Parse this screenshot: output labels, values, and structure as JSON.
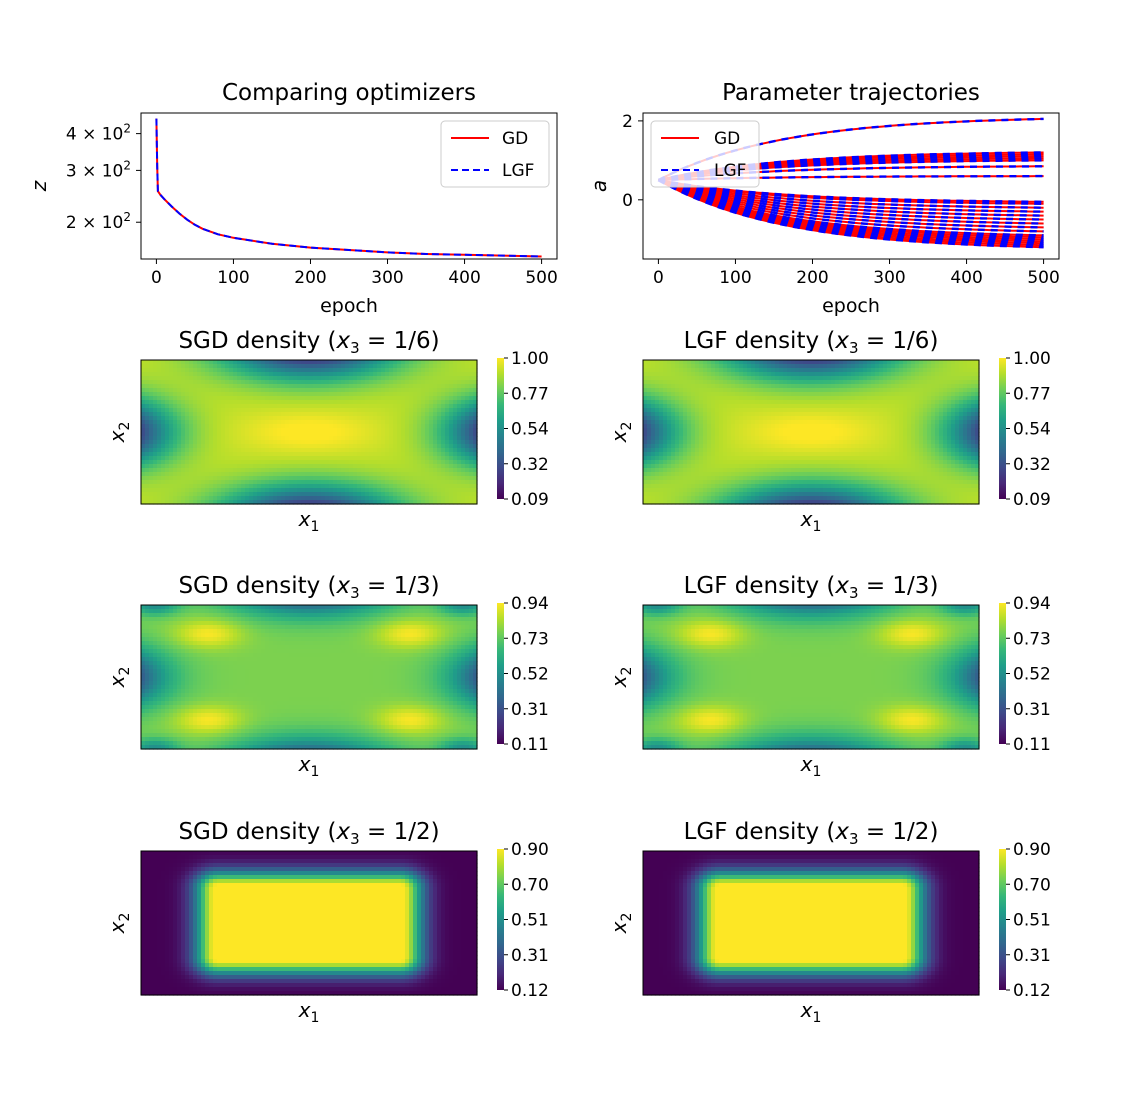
{
  "colors": {
    "gd": "#ff0000",
    "lgf": "#0000ff",
    "viridis": [
      "#440154",
      "#482878",
      "#3e4989",
      "#31688e",
      "#26828e",
      "#1f9e89",
      "#35b779",
      "#6ece58",
      "#b5de2b",
      "#fde725"
    ]
  },
  "chart_data": [
    {
      "type": "line",
      "title": "Comparing optimizers",
      "xlabel": "epoch",
      "ylabel": "z",
      "yscale": "log",
      "xlim": [
        -20,
        520
      ],
      "ylim": [
        150,
        470
      ],
      "xticks": [
        0,
        100,
        200,
        300,
        400,
        500
      ],
      "yticks": [
        {
          "value": 200,
          "mantissa": "2",
          "exponent": "2"
        },
        {
          "value": 300,
          "mantissa": "3",
          "exponent": "2"
        },
        {
          "value": 400,
          "mantissa": "4",
          "exponent": "2"
        }
      ],
      "legend": {
        "position": "top-right",
        "entries": [
          "GD",
          "LGF"
        ]
      },
      "series": [
        {
          "name": "GD",
          "style": "solid",
          "x": [
            0,
            1,
            2,
            5,
            10,
            20,
            30,
            40,
            50,
            60,
            80,
            100,
            150,
            200,
            250,
            300,
            350,
            400,
            450,
            500
          ],
          "y": [
            450,
            310,
            255,
            248,
            240,
            226,
            214,
            204,
            196,
            190,
            182,
            177,
            169,
            164,
            161,
            158,
            156,
            155,
            154,
            153
          ]
        },
        {
          "name": "LGF",
          "style": "dashed",
          "x": [
            0,
            1,
            2,
            5,
            10,
            20,
            30,
            40,
            50,
            60,
            80,
            100,
            150,
            200,
            250,
            300,
            350,
            400,
            450,
            500
          ],
          "y": [
            450,
            310,
            255,
            248,
            240,
            226,
            214,
            204,
            196,
            190,
            182,
            177,
            169,
            164,
            161,
            158,
            156,
            155,
            154,
            153
          ]
        }
      ]
    },
    {
      "type": "line",
      "title": "Parameter trajectories",
      "xlabel": "epoch",
      "ylabel": "a",
      "xlim": [
        -20,
        520
      ],
      "ylim": [
        -1.5,
        2.2
      ],
      "xticks": [
        0,
        100,
        200,
        300,
        400,
        500
      ],
      "yticks": [
        0,
        2
      ],
      "legend": {
        "position": "top-left",
        "entries": [
          "GD",
          "LGF"
        ]
      },
      "start_value": 0.5,
      "final_values": [
        2.05,
        1.2,
        1.15,
        1.1,
        1.05,
        1.0,
        0.85,
        0.6,
        -0.05,
        -0.1,
        -0.2,
        -0.3,
        -0.4,
        -0.5,
        -0.6,
        -0.7,
        -0.8,
        -0.9,
        -0.95,
        -1.0,
        -1.05,
        -1.1,
        -1.15,
        -1.2
      ]
    },
    {
      "type": "heatmap",
      "title_prefix": "SGD density",
      "x3": "1/6",
      "xlabel": "x",
      "xlabel_sub": "1",
      "ylabel": "x",
      "ylabel_sub": "2",
      "colorbar_ticks": [
        "0.09",
        "0.32",
        "0.54",
        "0.77",
        "1.00"
      ],
      "range": [
        0.09,
        1.0
      ]
    },
    {
      "type": "heatmap",
      "title_prefix": "LGF density",
      "x3": "1/6",
      "xlabel": "x",
      "xlabel_sub": "1",
      "ylabel": "x",
      "ylabel_sub": "2",
      "colorbar_ticks": [
        "0.09",
        "0.32",
        "0.54",
        "0.77",
        "1.00"
      ],
      "range": [
        0.09,
        1.0
      ]
    },
    {
      "type": "heatmap",
      "title_prefix": "SGD density",
      "x3": "1/3",
      "xlabel": "x",
      "xlabel_sub": "1",
      "ylabel": "x",
      "ylabel_sub": "2",
      "colorbar_ticks": [
        "0.11",
        "0.31",
        "0.52",
        "0.73",
        "0.94"
      ],
      "range": [
        0.11,
        0.94
      ]
    },
    {
      "type": "heatmap",
      "title_prefix": "LGF density",
      "x3": "1/3",
      "xlabel": "x",
      "xlabel_sub": "1",
      "ylabel": "x",
      "ylabel_sub": "2",
      "colorbar_ticks": [
        "0.11",
        "0.31",
        "0.52",
        "0.73",
        "0.94"
      ],
      "range": [
        0.11,
        0.94
      ]
    },
    {
      "type": "heatmap",
      "title_prefix": "SGD density",
      "x3": "1/2",
      "xlabel": "x",
      "xlabel_sub": "1",
      "ylabel": "x",
      "ylabel_sub": "2",
      "colorbar_ticks": [
        "0.12",
        "0.31",
        "0.51",
        "0.70",
        "0.90"
      ],
      "range": [
        0.12,
        0.9
      ]
    },
    {
      "type": "heatmap",
      "title_prefix": "LGF density",
      "x3": "1/2",
      "xlabel": "x",
      "xlabel_sub": "1",
      "ylabel": "x",
      "ylabel_sub": "2",
      "colorbar_ticks": [
        "0.12",
        "0.31",
        "0.51",
        "0.70",
        "0.90"
      ],
      "range": [
        0.12,
        0.9
      ]
    }
  ]
}
